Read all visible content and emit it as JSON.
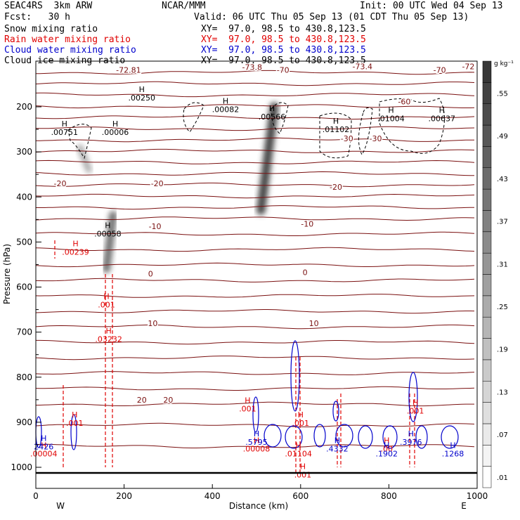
{
  "header": {
    "model": "SEAC4RS  3km ARW",
    "center": "NCAR/MMM",
    "init": "Init: 00 UTC Wed 04 Sep 13",
    "fcst": "Fcst:   30 h",
    "valid": "Valid: 06 UTC Thu 05 Sep 13 (01 CDT Thu 05 Sep 13)"
  },
  "fields": [
    {
      "name": "Snow mixing ratio",
      "xy": "XY=  97.0, 98.5 to 430.8,123.5",
      "color": "#000000"
    },
    {
      "name": "Rain water mixing ratio",
      "xy": "XY=  97.0, 98.5 to 430.8,123.5",
      "color": "#e00000"
    },
    {
      "name": "Cloud water mixing ratio",
      "xy": "XY=  97.0, 98.5 to 430.8,123.5",
      "color": "#0000cc"
    },
    {
      "name": "Cloud ice mixing ratio",
      "xy": "XY=  97.0, 98.5 to 430.8,123.5",
      "color": "#000000"
    }
  ],
  "chart_data": {
    "type": "cross-section",
    "xlabel": "Distance (km)",
    "ylabel": "Pressure (hPa)",
    "xlim": [
      0,
      1000
    ],
    "ylim": [
      1025,
      100
    ],
    "x_ticks": [
      "0",
      "200",
      "400",
      "600",
      "800",
      "1000"
    ],
    "y_ticks": [
      "200",
      "300",
      "400",
      "500",
      "600",
      "700",
      "800",
      "900",
      "1000"
    ],
    "x_end_labels": {
      "left": "W",
      "right": "E"
    },
    "colorbar": {
      "unit": "g kg⁻¹",
      "levels": [
        ".01",
        ".07",
        ".13",
        ".19",
        ".25",
        ".31",
        ".37",
        ".43",
        ".49",
        ".55"
      ]
    },
    "temperature_labels": [
      {
        "text": "-72.81",
        "x": 210,
        "p": 118
      },
      {
        "text": "-73.8",
        "x": 490,
        "p": 112
      },
      {
        "text": "-73.4",
        "x": 740,
        "p": 110
      },
      {
        "text": "-72",
        "x": 980,
        "p": 110
      },
      {
        "text": "-70",
        "x": 560,
        "p": 118
      },
      {
        "text": "-70",
        "x": 915,
        "p": 118
      },
      {
        "text": "-60",
        "x": 835,
        "p": 188
      },
      {
        "text": "-30",
        "x": 705,
        "p": 270
      },
      {
        "text": "-30",
        "x": 770,
        "p": 270
      },
      {
        "text": "-20",
        "x": 55,
        "p": 370
      },
      {
        "text": "-20",
        "x": 275,
        "p": 370
      },
      {
        "text": "-20",
        "x": 680,
        "p": 378
      },
      {
        "text": "-10",
        "x": 270,
        "p": 465
      },
      {
        "text": "-10",
        "x": 615,
        "p": 460
      },
      {
        "text": "0",
        "x": 260,
        "p": 570
      },
      {
        "text": "0",
        "x": 610,
        "p": 567
      },
      {
        "text": "10",
        "x": 265,
        "p": 680
      },
      {
        "text": "10",
        "x": 630,
        "p": 680
      },
      {
        "text": "20",
        "x": 240,
        "p": 850
      },
      {
        "text": "20",
        "x": 300,
        "p": 850
      }
    ],
    "maxima_labels": [
      {
        "text": ".00751",
        "x": 65,
        "p": 262,
        "color": "#000000"
      },
      {
        "text": ".00006",
        "x": 180,
        "p": 262,
        "color": "#000000"
      },
      {
        "text": ".00250",
        "x": 240,
        "p": 186,
        "color": "#000000"
      },
      {
        "text": ".00082",
        "x": 430,
        "p": 212,
        "color": "#000000"
      },
      {
        "text": ".00566",
        "x": 535,
        "p": 228,
        "color": "#000000"
      },
      {
        "text": ".01102",
        "x": 680,
        "p": 256,
        "color": "#000000"
      },
      {
        "text": ".01004",
        "x": 805,
        "p": 232,
        "color": "#000000"
      },
      {
        "text": ".00637",
        "x": 920,
        "p": 232,
        "color": "#000000"
      },
      {
        "text": ".00058",
        "x": 163,
        "p": 488,
        "color": "#000000"
      },
      {
        "text": ".00239",
        "x": 90,
        "p": 528,
        "color": "#e00000"
      },
      {
        "text": ".001",
        "x": 160,
        "p": 645,
        "color": "#e00000"
      },
      {
        "text": ".03232",
        "x": 165,
        "p": 722,
        "color": "#e00000"
      },
      {
        "text": ".001",
        "x": 88,
        "p": 908,
        "color": "#e00000"
      },
      {
        "text": ".001",
        "x": 480,
        "p": 876,
        "color": "#e00000"
      },
      {
        "text": ".001",
        "x": 600,
        "p": 908,
        "color": "#e00000"
      },
      {
        "text": ".001",
        "x": 860,
        "p": 881,
        "color": "#e00000"
      },
      {
        "text": ".001",
        "x": 605,
        "p": 1023,
        "color": "#e00000"
      },
      {
        "text": ".00004",
        "x": 18,
        "p": 976,
        "color": "#e00000"
      },
      {
        "text": ".00008",
        "x": 500,
        "p": 965,
        "color": "#e00000"
      },
      {
        "text": ".01104",
        "x": 595,
        "p": 976,
        "color": "#e00000"
      },
      {
        "text": ".00",
        "x": 795,
        "p": 965,
        "color": "#e00000"
      },
      {
        "text": "2426",
        "x": 18,
        "p": 960,
        "color": "#0000cc"
      },
      {
        "text": ".5795",
        "x": 500,
        "p": 950,
        "color": "#0000cc"
      },
      {
        "text": ".4332",
        "x": 683,
        "p": 965,
        "color": "#0000cc"
      },
      {
        "text": ".1902",
        "x": 795,
        "p": 976,
        "color": "#0000cc"
      },
      {
        "text": ".3976",
        "x": 850,
        "p": 950,
        "color": "#0000cc"
      },
      {
        "text": ".1268",
        "x": 945,
        "p": 976,
        "color": "#0000cc"
      }
    ],
    "ice_plumes": [
      {
        "x0": 100,
        "p0": 290,
        "x1": 120,
        "p1": 340,
        "intensity": 0.35
      },
      {
        "x0": 540,
        "p0": 200,
        "x1": 510,
        "p1": 430,
        "intensity": 0.85
      },
      {
        "x0": 175,
        "p0": 440,
        "x1": 160,
        "p1": 560,
        "intensity": 0.65
      },
      {
        "x0": 905,
        "p0": 280,
        "x1": 905,
        "p1": 330,
        "intensity": 0.15
      }
    ]
  }
}
